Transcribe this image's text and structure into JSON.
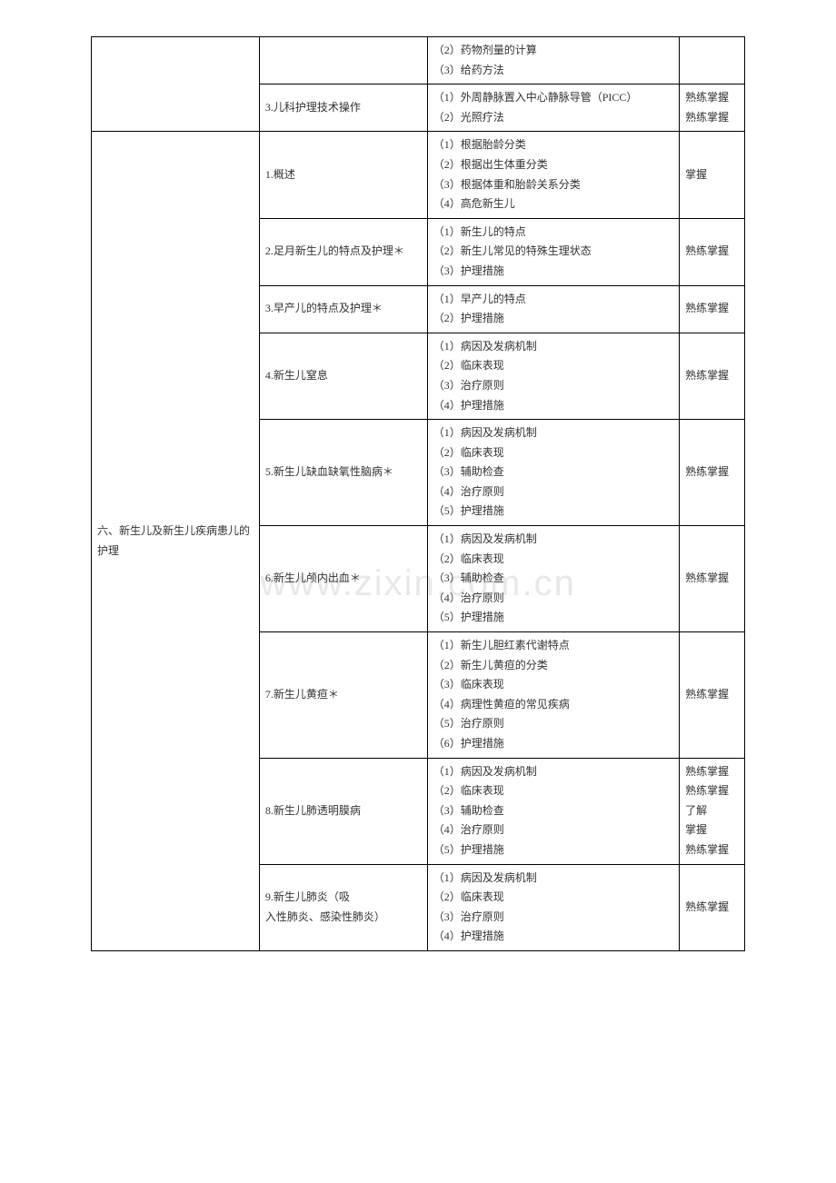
{
  "watermark": "www.zixin.com.cn",
  "rows": [
    {
      "col1": "",
      "col2": "",
      "col3": [
        "（2）药物剂量的计算",
        "（3）给药方法"
      ],
      "col4": "",
      "col1_rowspan": 1,
      "col2_rowspan": 1,
      "show_col1": false,
      "show_col2": false
    },
    {
      "col2": "3.儿科护理技术操作",
      "col3": [
        "（1）外周静脉置入中心静脉导管（PICC）",
        "（2）光照疗法"
      ],
      "col4": "熟练掌握\n熟练掌握"
    },
    {
      "col1": "六、新生儿及新生儿疾病患儿的护理",
      "col1_rowspan": 9,
      "col2": "1.概述",
      "col3": [
        "（1）根据胎龄分类",
        "（2）根据出生体重分类",
        "（3）根据体重和胎龄关系分类",
        "（4）高危新生儿"
      ],
      "col4": "掌握"
    },
    {
      "col2": "2.足月新生儿的特点及护理＊",
      "col3": [
        "（1）新生儿的特点",
        "（2）新生儿常见的特殊生理状态",
        "（3）护理措施"
      ],
      "col4": "熟练掌握"
    },
    {
      "col2": "3.早产儿的特点及护理＊",
      "col3": [
        "（1）早产儿的特点",
        "（2）护理措施"
      ],
      "col4": "熟练掌握"
    },
    {
      "col2": "4.新生儿窒息",
      "col3": [
        "（1）病因及发病机制",
        "（2）临床表现",
        "（3）治疗原则",
        "（4）护理措施"
      ],
      "col4": "熟练掌握"
    },
    {
      "col2": "5.新生儿缺血缺氧性脑病＊",
      "col3": [
        "（1）病因及发病机制",
        "（2）临床表现",
        "（3）辅助检查",
        "（4）治疗原则",
        "（5）护理措施"
      ],
      "col4": "熟练掌握"
    },
    {
      "col2": "6.新生儿颅内出血＊",
      "col3": [
        "（1）病因及发病机制",
        "（2）临床表现",
        "（3）辅助检查",
        "（4）治疗原则",
        "（5）护理措施"
      ],
      "col4": "熟练掌握"
    },
    {
      "col2": "7.新生儿黄疸＊",
      "col3": [
        "（1）新生儿胆红素代谢特点",
        "（2）新生儿黄疸的分类",
        "（3）临床表现",
        "（4）病理性黄疸的常见疾病",
        "（5）治疗原则",
        "（6）护理措施"
      ],
      "col4": "熟练掌握"
    },
    {
      "col2": "8.新生儿肺透明膜病",
      "col3": [
        "（1）病因及发病机制",
        "（2）临床表现",
        "（3）辅助检查",
        "（4）治疗原则",
        "（5）护理措施"
      ],
      "col4": "熟练掌握\n熟练掌握\n了解\n掌握\n熟练掌握"
    },
    {
      "col2": "9.新生儿肺炎（吸\n入性肺炎、感染性肺炎）",
      "col3": [
        "（1）病因及发病机制",
        "（2）临床表现",
        "（3）治疗原则",
        "（4）护理措施"
      ],
      "col4": "熟练掌握"
    }
  ]
}
